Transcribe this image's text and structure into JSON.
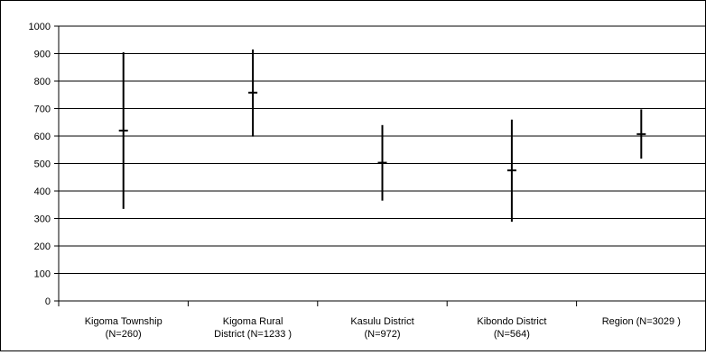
{
  "chart_data": {
    "type": "errorbar",
    "title": "",
    "xlabel": "",
    "ylabel": "",
    "ylim": [
      0,
      1000
    ],
    "yticks": [
      0,
      100,
      200,
      300,
      400,
      500,
      600,
      700,
      800,
      900,
      1000
    ],
    "grid": "horizontal",
    "legend": "none",
    "categories": [
      [
        "Kigoma Township",
        "(N=260)"
      ],
      [
        "Kigoma Rural",
        "District (N=1233 )"
      ],
      [
        "Kasulu District",
        "(N=972)"
      ],
      [
        "Kibondo District",
        "(N=564)"
      ],
      [
        "Region (N=3029 )"
      ]
    ],
    "series": [
      {
        "values": [
          620,
          758,
          503,
          475,
          607
        ],
        "low": [
          335,
          598,
          365,
          288,
          518
        ],
        "high": [
          905,
          915,
          640,
          660,
          697
        ]
      }
    ],
    "colors": {
      "line": "#000000",
      "grid": "#000000",
      "background": "#ffffff"
    }
  }
}
